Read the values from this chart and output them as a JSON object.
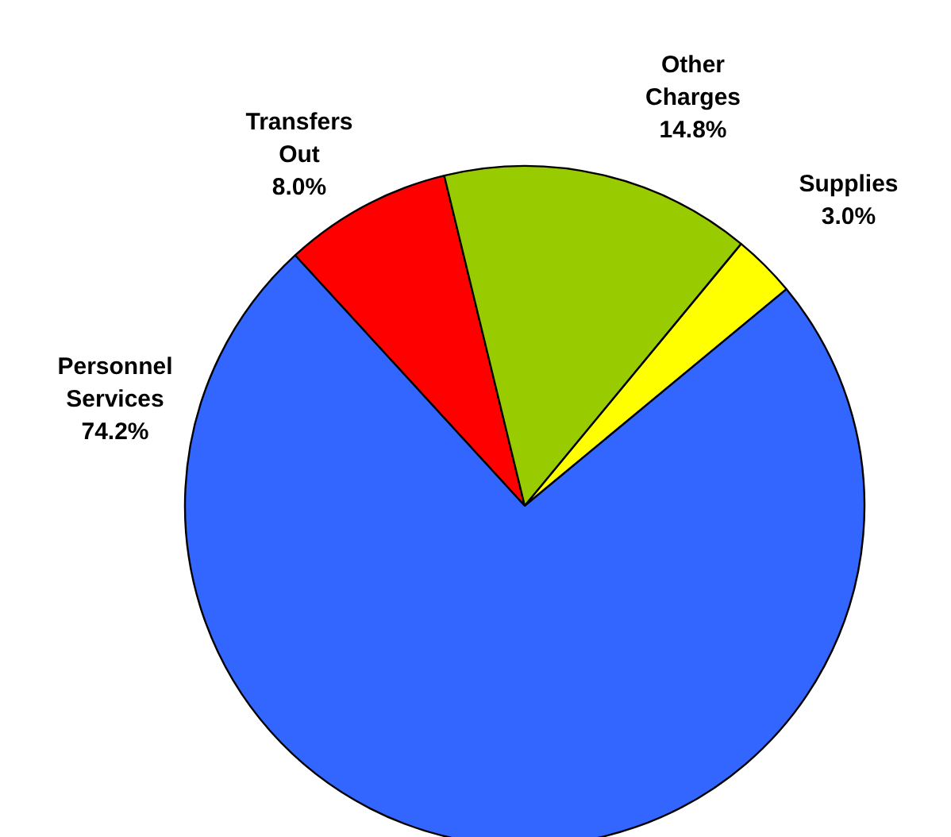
{
  "chart_data": {
    "type": "pie",
    "categories": [
      "Transfers Out",
      "Other Charges",
      "Supplies",
      "Personnel Services"
    ],
    "values": [
      8.0,
      14.8,
      3.0,
      74.2
    ],
    "value_labels": [
      "8.0%",
      "14.8%",
      "3.0%",
      "74.2%"
    ],
    "colors": [
      "#ff0000",
      "#99cc00",
      "#ffff00",
      "#3366ff"
    ]
  }
}
